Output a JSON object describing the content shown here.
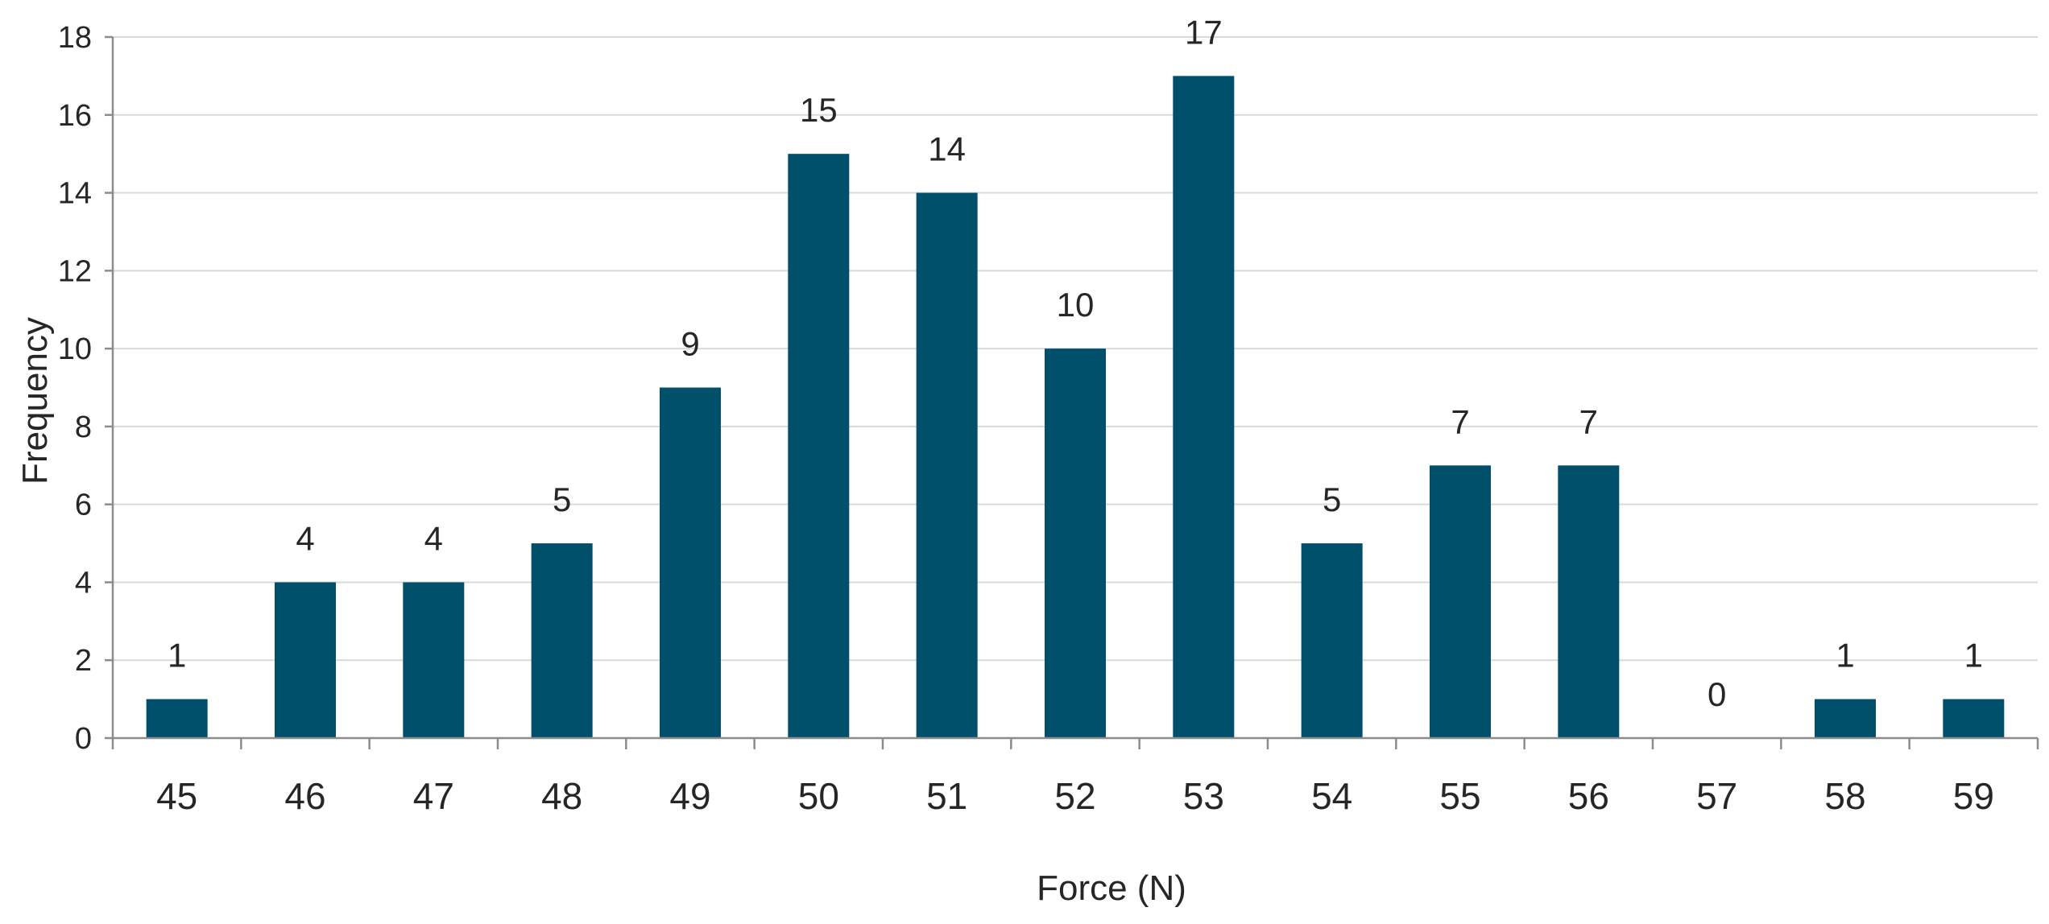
{
  "chart_data": {
    "type": "bar",
    "title": "",
    "xlabel": "Force (N)",
    "ylabel": "Frequency",
    "categories": [
      "45",
      "46",
      "47",
      "48",
      "49",
      "50",
      "51",
      "52",
      "53",
      "54",
      "55",
      "56",
      "57",
      "58",
      "59"
    ],
    "values": [
      1,
      4,
      4,
      5,
      9,
      15,
      14,
      10,
      17,
      5,
      7,
      7,
      0,
      1,
      1
    ],
    "data_labels": [
      "1",
      "4",
      "4",
      "5",
      "9",
      "15",
      "14",
      "10",
      "17",
      "5",
      "7",
      "7",
      "0",
      "1",
      "1"
    ],
    "ylim": [
      0,
      18
    ],
    "yticks": [
      0,
      2,
      4,
      6,
      8,
      10,
      12,
      14,
      16,
      18
    ],
    "ytick_labels": [
      "0",
      "2",
      "4",
      "6",
      "8",
      "10",
      "12",
      "14",
      "16",
      "18"
    ],
    "grid": true,
    "legend": "none",
    "bar_color": "#004f6b"
  }
}
